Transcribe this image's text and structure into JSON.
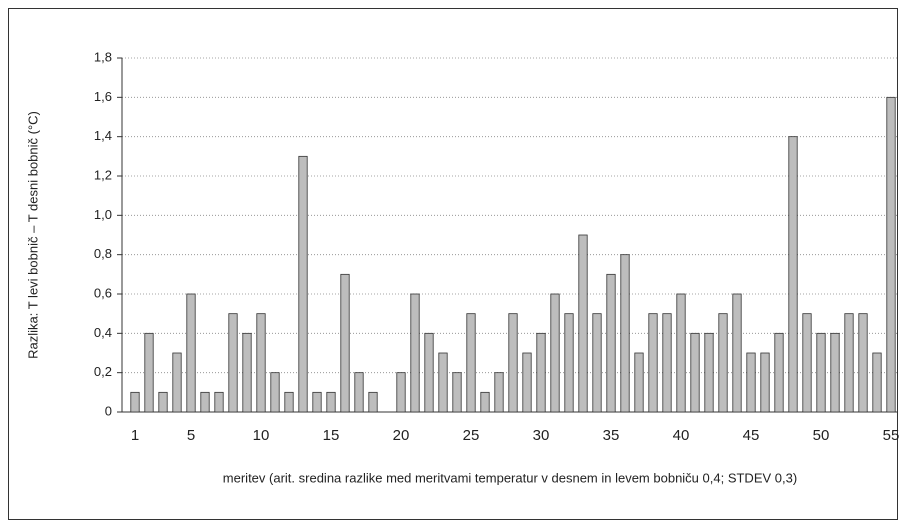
{
  "chart_data": {
    "type": "bar",
    "y_label": "Razlika: T levi bobnič – T desni bobnič (°C)",
    "x_label": "meritev (arit. sredina razlike med meritvami temperatur v desnem in levem bobniču 0,4; STDEV 0,3)",
    "categories": [
      "1",
      null,
      null,
      null,
      "5",
      null,
      null,
      null,
      null,
      "10",
      null,
      null,
      null,
      null,
      "15",
      null,
      null,
      null,
      null,
      "20",
      null,
      null,
      null,
      null,
      "25",
      null,
      null,
      null,
      null,
      "30",
      null,
      null,
      null,
      null,
      "35",
      null,
      null,
      null,
      null,
      "40",
      null,
      null,
      null,
      null,
      "45",
      null,
      null,
      null,
      null,
      "50",
      null,
      null,
      null,
      null,
      "55"
    ],
    "values": [
      0.1,
      0.4,
      0.1,
      0.3,
      0.6,
      0.1,
      0.1,
      0.5,
      0.4,
      0.5,
      0.2,
      0.1,
      1.3,
      0.1,
      0.1,
      0.7,
      0.2,
      0.1,
      0,
      0.2,
      0.6,
      0.4,
      0.3,
      0.2,
      0.5,
      0.1,
      0.2,
      0.5,
      0.3,
      0.4,
      0.6,
      0.5,
      0.9,
      0.5,
      0.7,
      0.8,
      0.3,
      0.5,
      0.5,
      0.6,
      0.4,
      0.4,
      0.5,
      0.6,
      0.3,
      0.3,
      0.4,
      1.4,
      0.5,
      0.4,
      0.4,
      0.5,
      0.5,
      0.3,
      1.6
    ],
    "color": "#bdbdbd",
    "ylim": [
      0,
      1.8
    ],
    "yticks": [
      0,
      {
        "value": 0.2,
        "label": "0,2"
      },
      {
        "value": 0.4,
        "label": "0,4"
      },
      {
        "value": 0.6,
        "label": "0,6"
      },
      {
        "value": 0.8,
        "label": "0,8"
      },
      {
        "value": 1.0,
        "label": "1,0"
      },
      {
        "value": 1.2,
        "label": "1,2"
      },
      {
        "value": 1.4,
        "label": "1,4"
      },
      {
        "value": 1.6,
        "label": "1,6"
      },
      {
        "value": 1.8,
        "label": "1,8"
      }
    ],
    "grid": true
  }
}
